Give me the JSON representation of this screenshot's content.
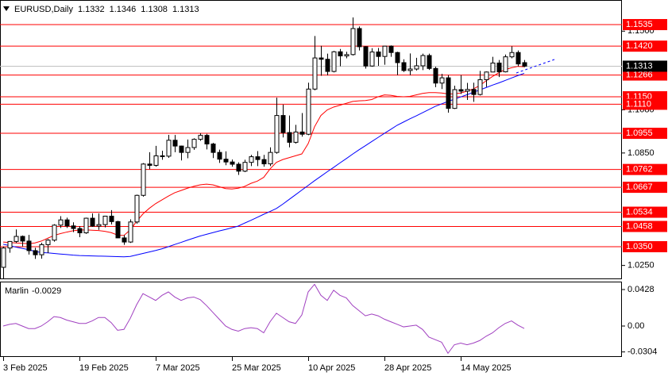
{
  "chart_data": [
    {
      "type": "candlestick",
      "title": "EURUSD,Daily",
      "categories": [
        "3 Feb 2025",
        null,
        null,
        null,
        null,
        null,
        null,
        null,
        null,
        null,
        null,
        null,
        "19 Feb 2025",
        null,
        null,
        null,
        null,
        null,
        null,
        null,
        null,
        null,
        null,
        null,
        "7 Mar 2025",
        null,
        null,
        null,
        null,
        null,
        null,
        null,
        null,
        null,
        null,
        null,
        "25 Mar 2025",
        null,
        null,
        null,
        null,
        null,
        null,
        null,
        null,
        null,
        null,
        null,
        "10 Apr 2025",
        null,
        null,
        null,
        null,
        null,
        null,
        null,
        null,
        null,
        null,
        null,
        "28 Apr 2025",
        null,
        null,
        null,
        null,
        null,
        null,
        null,
        null,
        null,
        null,
        null,
        "14 May 2025",
        null,
        null,
        null,
        null,
        null,
        null,
        null,
        null,
        null,
        null
      ],
      "open": [
        1.024,
        1.0343,
        1.0378,
        1.0405,
        1.038,
        1.0329,
        1.0307,
        1.0361,
        1.0385,
        1.0465,
        1.0493,
        1.0461,
        1.0447,
        1.0424,
        1.0502,
        1.046,
        1.0468,
        1.0513,
        1.0484,
        1.0397,
        1.0375,
        1.0482,
        1.0624,
        1.0791,
        1.0784,
        1.0835,
        1.0833,
        1.0918,
        1.0887,
        1.0853,
        1.0879,
        1.0923,
        1.0944,
        1.0898,
        1.0853,
        1.0817,
        1.0802,
        1.079,
        1.0753,
        1.08,
        1.083,
        1.0815,
        1.0792,
        1.0853,
        1.105,
        1.0959,
        1.0907,
        1.0962,
        1.095,
        1.1191,
        1.1357,
        1.135,
        1.1285,
        1.139,
        1.1368,
        1.1375,
        1.1514,
        1.1417,
        1.1314,
        1.1389,
        1.1365,
        1.142,
        1.1386,
        1.1332,
        1.129,
        1.1298,
        1.1315,
        1.137,
        1.1301,
        1.1223,
        1.1251,
        1.1088,
        1.1188,
        1.118,
        1.1189,
        1.1162,
        1.1241,
        1.1282,
        1.133,
        1.1283,
        1.1363,
        1.1386,
        1.1332
      ],
      "high": [
        1.035,
        1.038,
        1.0442,
        1.041,
        1.0413,
        1.0344,
        1.0371,
        1.0391,
        1.047,
        1.0513,
        1.0505,
        1.048,
        1.046,
        1.0505,
        1.0528,
        1.0528,
        1.0511,
        1.0545,
        1.0488,
        1.0412,
        1.0496,
        1.0628,
        1.0796,
        1.0854,
        1.0888,
        1.0862,
        1.0947,
        1.0946,
        1.0889,
        1.0922,
        1.0928,
        1.0955,
        1.0952,
        1.0904,
        1.0868,
        1.0859,
        1.0815,
        1.08,
        1.0814,
        1.084,
        1.086,
        1.084,
        1.088,
        1.1145,
        1.1108,
        1.105,
        1.1,
        1.1063,
        1.1225,
        1.1474,
        1.1422,
        1.138,
        1.1395,
        1.1405,
        1.139,
        1.1573,
        1.1525,
        1.142,
        1.1409,
        1.141,
        1.142,
        1.1424,
        1.139,
        1.135,
        1.1381,
        1.1358,
        1.138,
        1.138,
        1.131,
        1.1272,
        1.1266,
        1.1209,
        1.1266,
        1.1224,
        1.1225,
        1.1288,
        1.1285,
        1.1363,
        1.1346,
        1.1375,
        1.1419,
        1.1397,
        1.1346
      ],
      "low": [
        1.0141,
        1.0318,
        1.037,
        1.0352,
        1.0308,
        1.0285,
        1.0286,
        1.0316,
        1.0377,
        1.045,
        1.045,
        1.0428,
        1.0401,
        1.0419,
        1.0456,
        1.044,
        1.0453,
        1.0469,
        1.0396,
        1.036,
        1.037,
        1.0473,
        1.0617,
        1.0763,
        1.0777,
        1.0814,
        1.0824,
        1.0854,
        1.081,
        1.0822,
        1.0867,
        1.0915,
        1.0869,
        1.0823,
        1.0797,
        1.0785,
        1.0777,
        1.0733,
        1.0748,
        1.078,
        1.078,
        1.0777,
        1.078,
        1.0846,
        1.0933,
        1.088,
        1.09,
        1.0937,
        1.0945,
        1.1185,
        1.1262,
        1.1264,
        1.128,
        1.1313,
        1.1355,
        1.137,
        1.1397,
        1.13,
        1.131,
        1.1315,
        1.1321,
        1.1363,
        1.1265,
        1.1282,
        1.1265,
        1.129,
        1.1292,
        1.1293,
        1.1201,
        1.1191,
        1.1065,
        1.1085,
        1.1165,
        1.1133,
        1.1123,
        1.1157,
        1.1203,
        1.1281,
        1.1255,
        1.128,
        1.1355,
        1.1313,
        1.1308
      ],
      "close": [
        1.0343,
        1.0378,
        1.0405,
        1.038,
        1.0329,
        1.0307,
        1.0361,
        1.0385,
        1.0465,
        1.0493,
        1.0461,
        1.0447,
        1.0424,
        1.0502,
        1.046,
        1.0468,
        1.0513,
        1.0484,
        1.0397,
        1.0375,
        1.0482,
        1.0624,
        1.0791,
        1.0784,
        1.0835,
        1.0833,
        1.0918,
        1.0887,
        1.0853,
        1.0879,
        1.0923,
        1.0944,
        1.0898,
        1.0853,
        1.0817,
        1.0802,
        1.079,
        1.0753,
        1.08,
        1.083,
        1.0815,
        1.0792,
        1.0853,
        1.105,
        1.0959,
        1.0907,
        1.0962,
        1.095,
        1.1191,
        1.1357,
        1.135,
        1.1285,
        1.139,
        1.1368,
        1.1375,
        1.1514,
        1.1417,
        1.1314,
        1.1389,
        1.1365,
        1.142,
        1.1386,
        1.1332,
        1.129,
        1.1298,
        1.1315,
        1.137,
        1.1301,
        1.1223,
        1.1251,
        1.1088,
        1.1188,
        1.118,
        1.1189,
        1.1162,
        1.1241,
        1.1282,
        1.133,
        1.1283,
        1.1363,
        1.1386,
        1.1325,
        1.1313
      ],
      "up_color": "#ffffff",
      "down_color": "#000000",
      "lines": [
        {
          "color": "#ff0000",
          "values": [
            1.0375,
            1.0372,
            1.037,
            1.0368,
            1.0366,
            1.037,
            1.038,
            1.0395,
            1.041,
            1.042,
            1.0428,
            1.0435,
            1.0439,
            1.044,
            1.0438,
            1.0436,
            1.0432,
            1.0425,
            1.0412,
            1.041,
            1.044,
            1.0485,
            1.0525,
            1.0555,
            1.058,
            1.06,
            1.062,
            1.0638,
            1.065,
            1.0662,
            1.0672,
            1.068,
            1.0684,
            1.068,
            1.067,
            1.066,
            1.0658,
            1.0662,
            1.0672,
            1.0688,
            1.07,
            1.072,
            1.0765,
            1.08,
            1.0815,
            1.0825,
            1.0835,
            1.0845,
            1.09,
            1.099,
            1.105,
            1.108,
            1.1095,
            1.1105,
            1.1115,
            1.1125,
            1.1128,
            1.113,
            1.1135,
            1.115,
            1.116,
            1.1158,
            1.1152,
            1.115,
            1.1152,
            1.116,
            1.1168,
            1.1172,
            1.1172,
            1.117,
            1.1165,
            1.1166,
            1.117,
            1.118,
            1.1192,
            1.121,
            1.1235,
            1.1258,
            1.1278,
            1.1295,
            1.1305,
            1.1312,
            1.131
          ]
        },
        {
          "color": "#0000ff",
          "values": [
            1.0363,
            1.0356,
            1.0348,
            1.0341,
            1.0334,
            1.0325,
            1.0319,
            1.0317,
            1.0314,
            1.0311,
            1.0308,
            1.0305,
            1.0303,
            1.0302,
            1.0301,
            1.03,
            1.0299,
            1.0298,
            1.0297,
            1.0296,
            1.0298,
            1.0306,
            1.0314,
            1.0322,
            1.033,
            1.0339,
            1.035,
            1.0362,
            1.0373,
            1.0385,
            1.0396,
            1.0407,
            1.0416,
            1.0425,
            1.0434,
            1.0442,
            1.0451,
            1.046,
            1.0476,
            1.0491,
            1.0507,
            1.0523,
            1.0538,
            1.0554,
            1.0577,
            1.0602,
            1.0627,
            1.0652,
            1.0677,
            1.0702,
            1.0726,
            1.075,
            1.0773,
            1.0797,
            1.082,
            1.0844,
            1.0867,
            1.0889,
            1.0911,
            1.0933,
            1.0955,
            1.0976,
            1.0998,
            1.1015,
            1.1032,
            1.1048,
            1.1065,
            1.1082,
            1.1099,
            1.1112,
            1.1125,
            1.1137,
            1.1149,
            1.1161,
            1.1174,
            1.1186,
            1.1199,
            1.1212,
            1.1224,
            1.1237,
            1.125,
            1.1263,
            1.1275
          ]
        }
      ],
      "levels": {
        "color": "#ff0000",
        "values": [
          1.1535,
          {
            "value": 1.142,
            "label": "1.1420"
          },
          1.1266,
          {
            "value": 1.115,
            "label": "1.1150"
          },
          {
            "value": 1.111,
            "label": "1.1110"
          },
          1.0955,
          1.0762,
          1.0667,
          1.0534,
          1.0458,
          {
            "value": 1.035,
            "label": "1.0350"
          }
        ]
      },
      "ylim": [
        1.01765,
        1.16662
      ],
      "yticks": [
        {
          "value": 1.15,
          "label": "1.1500"
        },
        {
          "value": 1.108,
          "label": "1.1080"
        },
        {
          "value": 1.085,
          "label": "1.0850"
        },
        {
          "value": 1.025,
          "label": "1.0250"
        }
      ]
    },
    {
      "type": "line",
      "title": "Marlin",
      "color": "#a040c0",
      "values": [
        0.0,
        0.002,
        0.003,
        0.0,
        -0.003,
        -0.003,
        0.0,
        0.005,
        0.011,
        0.01,
        0.007,
        0.005,
        0.003,
        0.003,
        0.006,
        0.01,
        0.01,
        0.004,
        -0.005,
        -0.004,
        0.009,
        0.025,
        0.038,
        0.034,
        0.03,
        0.036,
        0.04,
        0.034,
        0.03,
        0.033,
        0.034,
        0.031,
        0.024,
        0.016,
        0.008,
        0.0,
        -0.004,
        -0.006,
        -0.003,
        -0.002,
        -0.003,
        -0.008,
        0.005,
        0.015,
        0.01,
        0.005,
        0.003,
        0.013,
        0.04,
        0.049,
        0.036,
        0.03,
        0.042,
        0.036,
        0.033,
        0.024,
        0.018,
        0.012,
        0.014,
        0.012,
        0.008,
        0.005,
        0.002,
        -0.001,
        0.0,
        0.001,
        -0.004,
        -0.013,
        -0.016,
        -0.019,
        -0.032,
        -0.022,
        -0.02,
        -0.022,
        -0.02,
        -0.017,
        -0.012,
        -0.008,
        -0.002,
        0.003,
        0.006,
        0.001,
        -0.0029
      ],
      "ylim": [
        -0.0363,
        0.0521
      ],
      "yticks": [
        0.0428,
        {
          "value": 0,
          "label": "0.00"
        },
        -0.0304
      ]
    }
  ]
}
